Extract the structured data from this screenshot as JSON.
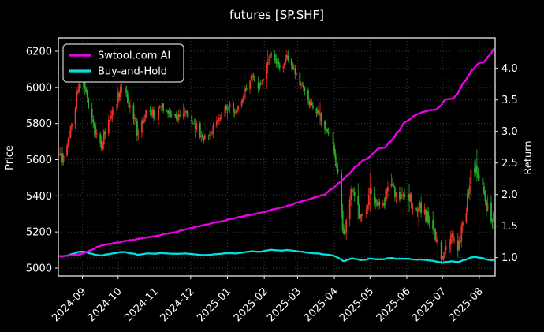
{
  "title": "futures [SP.SHF]",
  "legend": {
    "position": "upper-left",
    "items": [
      {
        "label": "Swtool.com AI"
      },
      {
        "label": "Buy-and-Hold"
      }
    ]
  },
  "axes": {
    "left": {
      "label": "Price",
      "ticks": [
        5000,
        5200,
        5400,
        5600,
        5800,
        6000,
        6200
      ],
      "range": [
        4956,
        6274
      ]
    },
    "right": {
      "label": "Return",
      "tick_labels": [
        "1.0",
        "1.5",
        "2.0",
        "2.5",
        "3.0",
        "3.5",
        "4.0"
      ],
      "range": [
        0.71,
        4.48
      ]
    },
    "x": {
      "tick_labels": [
        "2024-09",
        "2024-10",
        "2024-11",
        "2024-12",
        "2025-01",
        "2025-02",
        "2025-03",
        "2025-04",
        "2025-05",
        "2025-06",
        "2025-07",
        "2025-08"
      ]
    }
  },
  "colors": {
    "background": "#000000",
    "grid": "#3b3b3b",
    "spine": "#e6e6e6",
    "text": "#ffffff",
    "candle_up": "#ee3224",
    "candle_down": "#2aaf2a",
    "ai_line": "#e800e8",
    "buyhold_line": "#00e1e1"
  },
  "chart_data": {
    "type": "candlestick+line",
    "title": "futures [SP.SHF]",
    "x_start": "2024-08-13",
    "x_end": "2025-08-13",
    "grid": true,
    "price_ylim": [
      4956,
      6274
    ],
    "return_ylim": [
      0.71,
      4.48
    ],
    "price_close_anchors": [
      [
        "2024-08-13",
        5640
      ],
      [
        "2024-08-16",
        5600
      ],
      [
        "2024-08-20",
        5720
      ],
      [
        "2024-08-24",
        5850
      ],
      [
        "2024-08-28",
        5980
      ],
      [
        "2024-09-02",
        6040
      ],
      [
        "2024-09-06",
        5900
      ],
      [
        "2024-09-10",
        5800
      ],
      [
        "2024-09-14",
        5720
      ],
      [
        "2024-09-17",
        5680
      ],
      [
        "2024-09-21",
        5780
      ],
      [
        "2024-09-26",
        5880
      ],
      [
        "2024-10-01",
        5950
      ],
      [
        "2024-10-05",
        6000
      ],
      [
        "2024-10-09",
        5920
      ],
      [
        "2024-10-13",
        5850
      ],
      [
        "2024-10-17",
        5760
      ],
      [
        "2024-10-22",
        5820
      ],
      [
        "2024-10-27",
        5880
      ],
      [
        "2024-11-01",
        5840
      ],
      [
        "2024-11-06",
        5900
      ],
      [
        "2024-11-11",
        5870
      ],
      [
        "2024-11-16",
        5820
      ],
      [
        "2024-11-21",
        5850
      ],
      [
        "2024-11-26",
        5880
      ],
      [
        "2024-12-01",
        5840
      ],
      [
        "2024-12-06",
        5780
      ],
      [
        "2024-12-11",
        5700
      ],
      [
        "2024-12-16",
        5730
      ],
      [
        "2024-12-21",
        5790
      ],
      [
        "2024-12-27",
        5850
      ],
      [
        "2025-01-02",
        5900
      ],
      [
        "2025-01-07",
        5870
      ],
      [
        "2025-01-12",
        5930
      ],
      [
        "2025-01-17",
        6000
      ],
      [
        "2025-01-22",
        6050
      ],
      [
        "2025-01-27",
        6000
      ],
      [
        "2025-02-01",
        6080
      ],
      [
        "2025-02-04",
        6150
      ],
      [
        "2025-02-08",
        6180
      ],
      [
        "2025-02-14",
        6120
      ],
      [
        "2025-02-20",
        6160
      ],
      [
        "2025-02-26",
        6100
      ],
      [
        "2025-03-03",
        6020
      ],
      [
        "2025-03-08",
        5960
      ],
      [
        "2025-03-13",
        5900
      ],
      [
        "2025-03-18",
        5860
      ],
      [
        "2025-03-23",
        5800
      ],
      [
        "2025-03-28",
        5740
      ],
      [
        "2025-04-01",
        5650
      ],
      [
        "2025-04-04",
        5550
      ],
      [
        "2025-04-07",
        5300
      ],
      [
        "2025-04-09",
        5180
      ],
      [
        "2025-04-12",
        5320
      ],
      [
        "2025-04-15",
        5450
      ],
      [
        "2025-04-19",
        5380
      ],
      [
        "2025-04-23",
        5260
      ],
      [
        "2025-04-27",
        5330
      ],
      [
        "2025-05-01",
        5430
      ],
      [
        "2025-05-06",
        5380
      ],
      [
        "2025-05-10",
        5300
      ],
      [
        "2025-05-14",
        5400
      ],
      [
        "2025-05-18",
        5480
      ],
      [
        "2025-05-22",
        5420
      ],
      [
        "2025-05-26",
        5350
      ],
      [
        "2025-05-30",
        5420
      ],
      [
        "2025-06-04",
        5380
      ],
      [
        "2025-06-09",
        5300
      ],
      [
        "2025-06-14",
        5340
      ],
      [
        "2025-06-19",
        5260
      ],
      [
        "2025-06-24",
        5180
      ],
      [
        "2025-06-28",
        5080
      ],
      [
        "2025-07-02",
        5060
      ],
      [
        "2025-07-06",
        5120
      ],
      [
        "2025-07-10",
        5180
      ],
      [
        "2025-07-14",
        5120
      ],
      [
        "2025-07-18",
        5220
      ],
      [
        "2025-07-22",
        5380
      ],
      [
        "2025-07-26",
        5580
      ],
      [
        "2025-07-30",
        5520
      ],
      [
        "2025-08-03",
        5450
      ],
      [
        "2025-08-06",
        5380
      ],
      [
        "2025-08-09",
        5300
      ],
      [
        "2025-08-12",
        5230
      ],
      [
        "2025-08-13",
        5300
      ]
    ],
    "series": [
      {
        "name": "Swtool.com AI",
        "axis": "right",
        "anchors": [
          [
            "2024-08-13",
            1.02
          ],
          [
            "2024-08-25",
            1.04
          ],
          [
            "2024-09-01",
            1.06
          ],
          [
            "2024-09-08",
            1.12
          ],
          [
            "2024-09-16",
            1.19
          ],
          [
            "2024-10-01",
            1.24
          ],
          [
            "2024-10-16",
            1.29
          ],
          [
            "2024-11-01",
            1.34
          ],
          [
            "2024-11-16",
            1.4
          ],
          [
            "2024-12-01",
            1.47
          ],
          [
            "2024-12-16",
            1.53
          ],
          [
            "2025-01-01",
            1.6
          ],
          [
            "2025-01-16",
            1.66
          ],
          [
            "2025-02-02",
            1.73
          ],
          [
            "2025-02-17",
            1.8
          ],
          [
            "2025-03-03",
            1.88
          ],
          [
            "2025-03-13",
            1.94
          ],
          [
            "2025-03-24",
            2.0
          ],
          [
            "2025-04-01",
            2.12
          ],
          [
            "2025-04-11",
            2.28
          ],
          [
            "2025-04-18",
            2.42
          ],
          [
            "2025-04-26",
            2.55
          ],
          [
            "2025-05-01",
            2.6
          ],
          [
            "2025-05-08",
            2.73
          ],
          [
            "2025-05-14",
            2.75
          ],
          [
            "2025-05-21",
            2.9
          ],
          [
            "2025-05-25",
            3.0
          ],
          [
            "2025-05-29",
            3.12
          ],
          [
            "2025-06-09",
            3.27
          ],
          [
            "2025-06-16",
            3.32
          ],
          [
            "2025-06-27",
            3.35
          ],
          [
            "2025-07-03",
            3.5
          ],
          [
            "2025-07-11",
            3.52
          ],
          [
            "2025-07-19",
            3.77
          ],
          [
            "2025-07-26",
            3.98
          ],
          [
            "2025-07-31",
            4.08
          ],
          [
            "2025-08-05",
            4.1
          ],
          [
            "2025-08-09",
            4.18
          ],
          [
            "2025-08-13",
            4.3
          ]
        ]
      },
      {
        "name": "Buy-and-Hold",
        "axis": "right",
        "derived": "close / baseline_price",
        "baseline_price": 5500
      }
    ]
  }
}
